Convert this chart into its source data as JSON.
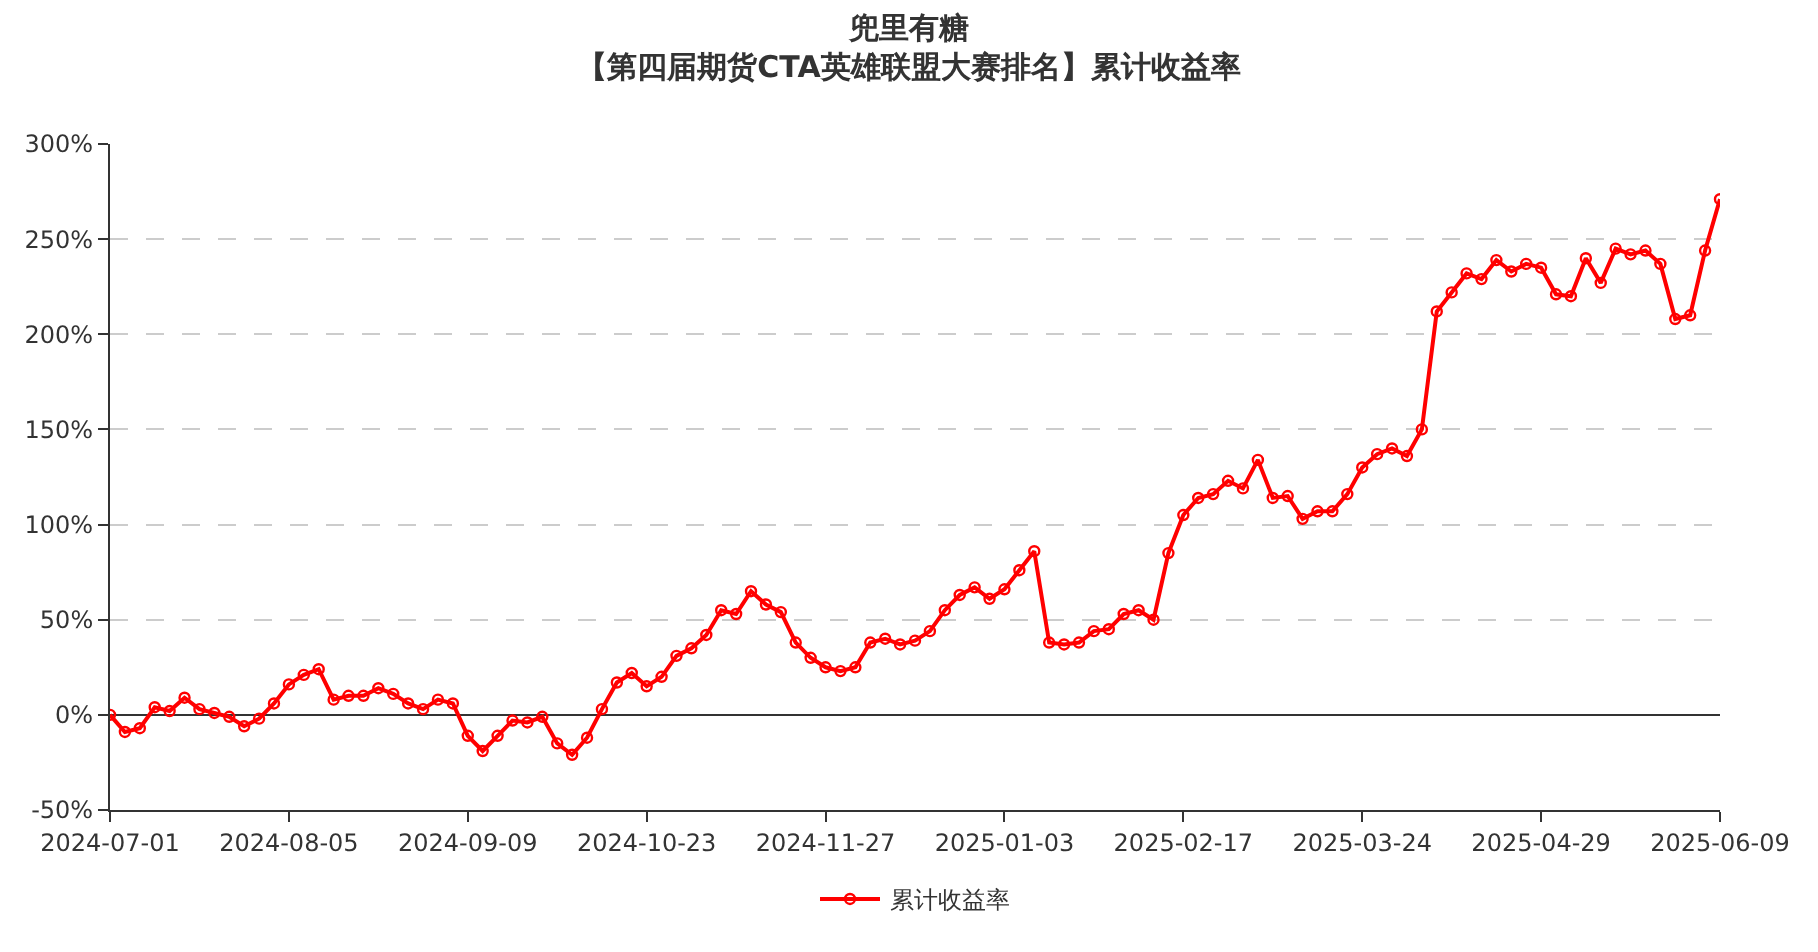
{
  "chart_data": {
    "type": "line",
    "title": "兜里有糖",
    "subtitle": "【第四届期货CTA英雄联盟大赛排名】累计收益率",
    "categories": [
      "2024-07-01",
      null,
      null,
      null,
      null,
      null,
      null,
      null,
      null,
      null,
      null,
      null,
      "2024-08-05",
      null,
      null,
      null,
      null,
      null,
      null,
      null,
      null,
      null,
      null,
      null,
      "2024-09-09",
      null,
      null,
      null,
      null,
      null,
      null,
      null,
      null,
      null,
      null,
      null,
      "2024-10-23",
      null,
      null,
      null,
      null,
      null,
      null,
      null,
      null,
      null,
      null,
      null,
      "2024-11-27",
      null,
      null,
      null,
      null,
      null,
      null,
      null,
      null,
      null,
      null,
      null,
      "2025-01-03",
      null,
      null,
      null,
      null,
      null,
      null,
      null,
      null,
      null,
      null,
      null,
      "2025-02-17",
      null,
      null,
      null,
      null,
      null,
      null,
      null,
      null,
      null,
      null,
      null,
      "2025-03-24",
      null,
      null,
      null,
      null,
      null,
      null,
      null,
      null,
      null,
      null,
      null,
      "2025-04-29",
      null,
      null,
      null,
      null,
      null,
      null,
      null,
      null,
      null,
      null,
      null,
      "2025-06-09"
    ],
    "series": [
      {
        "name": "累计收益率",
        "color": "#ff0000",
        "values": [
          0,
          -9,
          -7,
          4,
          2,
          9,
          3,
          1,
          -1,
          -6,
          -2,
          6,
          16,
          21,
          24,
          8,
          10,
          10,
          14,
          11,
          6,
          3,
          8,
          6,
          -11,
          -19,
          -11,
          -3,
          -4,
          -1,
          -15,
          -21,
          -12,
          3,
          17,
          22,
          15,
          20,
          31,
          35,
          42,
          55,
          53,
          65,
          58,
          54,
          38,
          30,
          25,
          23,
          25,
          38,
          40,
          37,
          39,
          44,
          55,
          63,
          67,
          61,
          66,
          76,
          86,
          38,
          37,
          38,
          44,
          45,
          53,
          55,
          50,
          85,
          105,
          114,
          116,
          123,
          119,
          134,
          114,
          115,
          103,
          107,
          107,
          116,
          130,
          137,
          140,
          136,
          150,
          212,
          222,
          232,
          229,
          239,
          233,
          237,
          235,
          221,
          220,
          240,
          227,
          245,
          242,
          244,
          237,
          208,
          210,
          244,
          271
        ]
      }
    ],
    "ylim": [
      -50,
      300
    ],
    "yticks": [
      {
        "value": -50,
        "label": "-50%"
      },
      {
        "value": 0,
        "label": "0%"
      },
      {
        "value": 50,
        "label": "50%"
      },
      {
        "value": 100,
        "label": "100%"
      },
      {
        "value": 150,
        "label": "150%"
      },
      {
        "value": 200,
        "label": "200%"
      },
      {
        "value": 250,
        "label": "250%"
      },
      {
        "value": 300,
        "label": "300%"
      }
    ],
    "grid": "y",
    "legend": "bottom",
    "marker": "circle",
    "line_style": "solid"
  }
}
